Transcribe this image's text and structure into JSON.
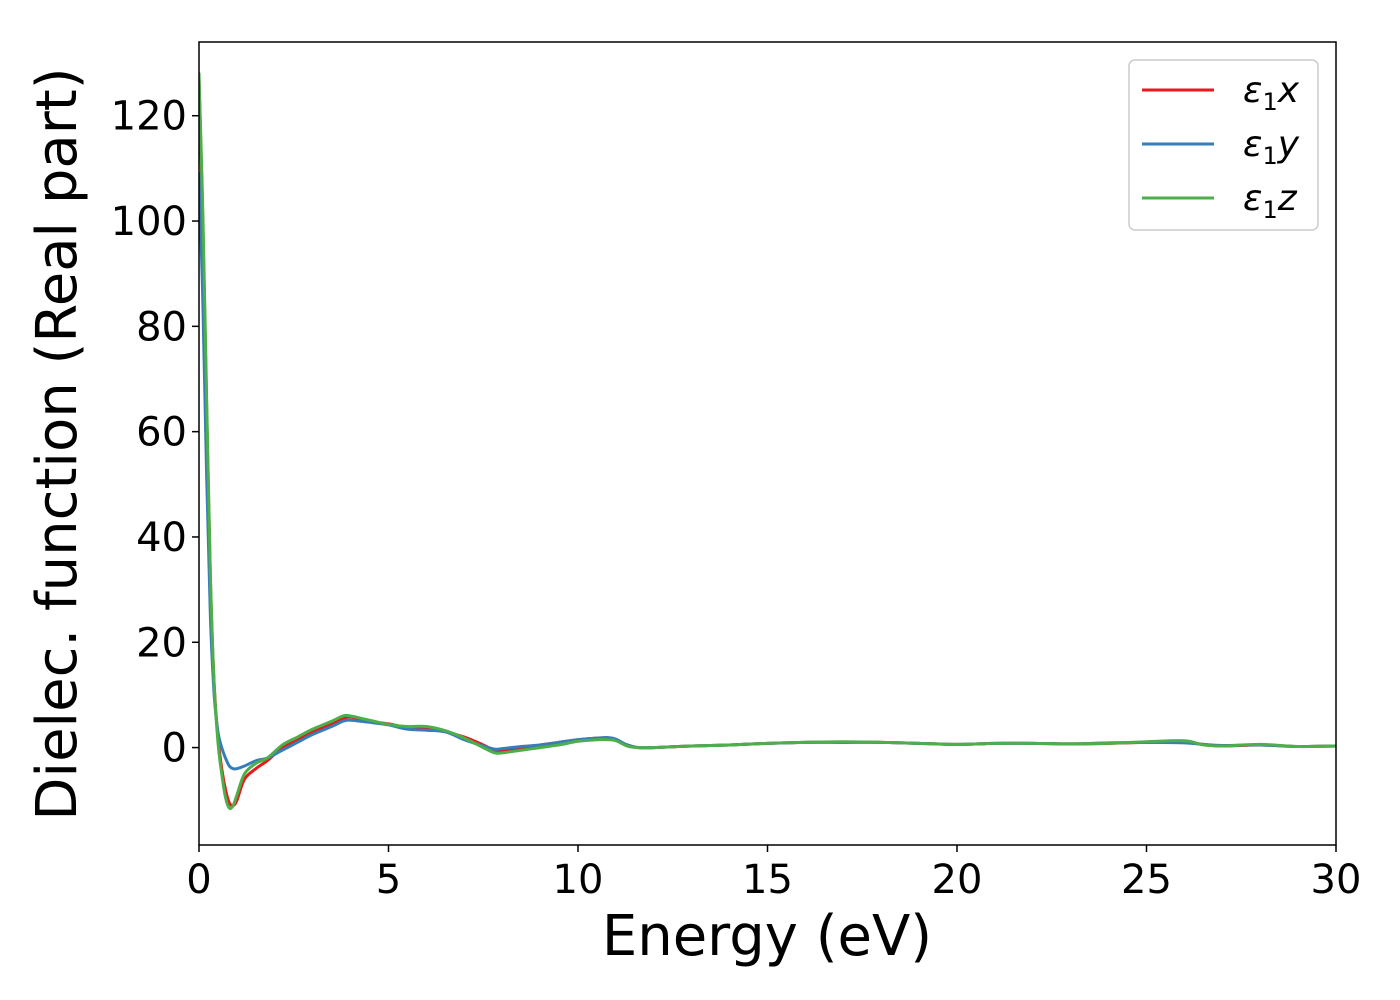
{
  "chart_data": {
    "type": "line",
    "title": "",
    "xlabel": "Energy (eV)",
    "ylabel": "Dielec. function (Real part)",
    "xlim": [
      0,
      30
    ],
    "ylim": [
      -18.5,
      134
    ],
    "xticks": [
      0,
      5,
      10,
      15,
      20,
      25,
      30
    ],
    "yticks": [
      0,
      20,
      40,
      60,
      80,
      100,
      120
    ],
    "grid": false,
    "legend_position": "top-right",
    "series": [
      {
        "name": "ε1x",
        "legend": {
          "base": "ε",
          "sub": "1",
          "suffix": "x"
        },
        "color": "#e41a1c",
        "x": [
          0.0,
          0.1,
          0.2,
          0.3,
          0.4,
          0.5,
          0.6,
          0.7,
          0.8,
          0.9,
          1.0,
          1.2,
          1.5,
          1.8,
          2.2,
          2.6,
          3.0,
          3.5,
          3.8,
          4.0,
          4.5,
          5.0,
          5.5,
          6.0,
          6.5,
          7.0,
          7.5,
          7.8,
          8.0,
          8.5,
          9.0,
          9.5,
          10.0,
          10.5,
          10.8,
          11.0,
          11.3,
          11.6,
          12.0,
          13.0,
          14.0,
          15.0,
          16.0,
          17.0,
          18.0,
          19.0,
          20.0,
          21.0,
          22.0,
          23.0,
          24.0,
          25.0,
          26.0,
          26.5,
          27.0,
          28.0,
          29.0,
          30.0
        ],
        "y": [
          127,
          100,
          65,
          32,
          12,
          2,
          -4,
          -8,
          -10.5,
          -11,
          -10,
          -6,
          -4,
          -2.5,
          0,
          1.5,
          3,
          4.5,
          5.5,
          5.8,
          5.0,
          4.5,
          3.8,
          3.5,
          3.0,
          2.0,
          0.5,
          -0.5,
          -0.5,
          0,
          0.5,
          1.0,
          1.5,
          1.8,
          1.8,
          1.5,
          0.5,
          0,
          0,
          0.3,
          0.5,
          0.8,
          1.0,
          1.0,
          1.0,
          0.8,
          0.6,
          0.8,
          0.8,
          0.7,
          0.8,
          1.0,
          1.0,
          0.6,
          0.3,
          0.5,
          0.2,
          0.3
        ]
      },
      {
        "name": "ε1y",
        "legend": {
          "base": "ε",
          "sub": "1",
          "suffix": "y"
        },
        "color": "#377eb8",
        "x": [
          0.0,
          0.1,
          0.2,
          0.3,
          0.4,
          0.5,
          0.6,
          0.7,
          0.8,
          0.9,
          1.0,
          1.2,
          1.5,
          1.8,
          2.2,
          2.6,
          3.0,
          3.5,
          3.8,
          4.0,
          4.5,
          5.0,
          5.5,
          6.0,
          6.5,
          7.0,
          7.5,
          7.8,
          8.0,
          8.5,
          9.0,
          9.5,
          10.0,
          10.5,
          10.8,
          11.0,
          11.3,
          11.6,
          12.0,
          13.0,
          14.0,
          15.0,
          16.0,
          17.0,
          18.0,
          19.0,
          20.0,
          21.0,
          22.0,
          23.0,
          24.0,
          25.0,
          26.0,
          26.5,
          27.0,
          28.0,
          29.0,
          30.0
        ],
        "y": [
          109,
          85,
          52,
          25,
          10,
          3,
          0,
          -2,
          -3.5,
          -4,
          -4,
          -3.5,
          -2.5,
          -2,
          -0.5,
          1,
          2.5,
          4,
          5.0,
          5.2,
          4.8,
          4.3,
          3.5,
          3.3,
          3.0,
          1.5,
          0.3,
          -0.3,
          -0.2,
          0.2,
          0.5,
          1.0,
          1.5,
          1.8,
          1.9,
          1.6,
          0.5,
          0,
          0,
          0.3,
          0.5,
          0.8,
          1.0,
          1.0,
          1.0,
          0.8,
          0.6,
          0.8,
          0.8,
          0.7,
          0.9,
          1.0,
          0.9,
          0.6,
          0.4,
          0.5,
          0.2,
          0.3
        ]
      },
      {
        "name": "ε1z",
        "legend": {
          "base": "ε",
          "sub": "1",
          "suffix": "z"
        },
        "color": "#4daf4a",
        "x": [
          0.0,
          0.1,
          0.2,
          0.3,
          0.4,
          0.5,
          0.6,
          0.7,
          0.8,
          0.9,
          1.0,
          1.2,
          1.5,
          1.8,
          2.2,
          2.6,
          3.0,
          3.5,
          3.8,
          4.0,
          4.5,
          5.0,
          5.5,
          6.0,
          6.5,
          7.0,
          7.5,
          7.8,
          8.0,
          8.5,
          9.0,
          9.5,
          10.0,
          10.5,
          10.8,
          11.0,
          11.3,
          11.6,
          12.0,
          13.0,
          14.0,
          15.0,
          16.0,
          17.0,
          18.0,
          19.0,
          20.0,
          21.0,
          22.0,
          23.0,
          24.0,
          25.0,
          26.0,
          26.5,
          27.0,
          28.0,
          29.0,
          30.0
        ],
        "y": [
          128,
          102,
          67,
          33,
          12,
          1,
          -5,
          -9.5,
          -11.5,
          -11,
          -9,
          -5,
          -3,
          -2,
          0.5,
          2,
          3.5,
          5,
          6.0,
          6.0,
          5.2,
          4.4,
          4.0,
          4.0,
          3.2,
          1.8,
          0,
          -1.0,
          -1.0,
          -0.5,
          0,
          0.5,
          1.2,
          1.5,
          1.5,
          1.3,
          0.3,
          0,
          0,
          0.3,
          0.5,
          0.8,
          1.0,
          1.1,
          1.0,
          0.8,
          0.6,
          0.8,
          0.8,
          0.7,
          0.8,
          1.1,
          1.3,
          0.5,
          0.3,
          0.6,
          0.2,
          0.3
        ]
      }
    ]
  }
}
